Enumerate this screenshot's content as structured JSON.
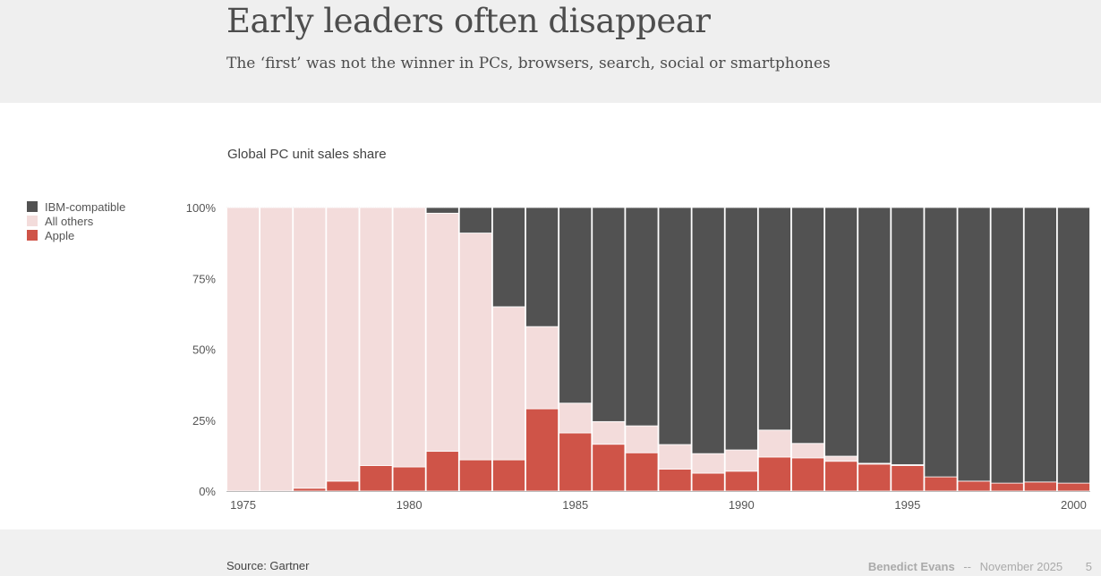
{
  "header": {
    "title": "Early leaders often disappear",
    "subtitle": "The ‘first’ was not the winner in PCs, browsers, search, social or smartphones"
  },
  "chart_data": {
    "type": "bar",
    "stacked": true,
    "title": "Global PC unit sales share",
    "xlabel": "",
    "ylabel": "",
    "ylim": [
      0,
      100
    ],
    "y_ticks": [
      "0%",
      "25%",
      "50%",
      "75%",
      "100%"
    ],
    "x_ticks": [
      "1975",
      "1980",
      "1985",
      "1990",
      "1995",
      "2000"
    ],
    "legend_placement": "left",
    "categories": [
      1975,
      1976,
      1977,
      1978,
      1979,
      1980,
      1981,
      1982,
      1983,
      1984,
      1985,
      1986,
      1987,
      1988,
      1989,
      1990,
      1991,
      1992,
      1993,
      1994,
      1995,
      1996,
      1997,
      1998,
      1999,
      2000
    ],
    "series": [
      {
        "name": "Apple",
        "color": "#cf5448",
        "values": [
          0,
          0,
          1,
          3.5,
          9,
          8.5,
          14,
          11,
          11,
          29,
          20.5,
          16.5,
          13.5,
          7.7,
          6.3,
          7,
          12,
          11.7,
          10.5,
          9.5,
          9,
          5,
          3.5,
          2.8,
          3.2,
          2.8
        ]
      },
      {
        "name": "All others",
        "color": "#f3dcdb",
        "values": [
          100,
          100,
          99,
          96.5,
          91,
          91.5,
          84,
          80,
          54,
          29,
          10.5,
          8,
          9.5,
          8.7,
          6.9,
          7.5,
          9.5,
          5.1,
          1.8,
          0.3,
          0.3,
          0,
          0,
          0,
          0,
          0
        ]
      },
      {
        "name": "IBM-compatible",
        "color": "#525252",
        "values": [
          0,
          0,
          0,
          0,
          0,
          0,
          2,
          9,
          35,
          42,
          69,
          75.5,
          77,
          83.6,
          86.8,
          85.5,
          78.5,
          83.2,
          87.7,
          90.2,
          90.7,
          95,
          96.5,
          97.2,
          96.8,
          97.2
        ]
      }
    ],
    "legend": [
      "IBM-compatible",
      "All others",
      "Apple"
    ]
  },
  "footer": {
    "source": "Source: Gartner",
    "author": "Benedict Evans",
    "separator": "--",
    "date": "November 2025",
    "page": "5"
  }
}
